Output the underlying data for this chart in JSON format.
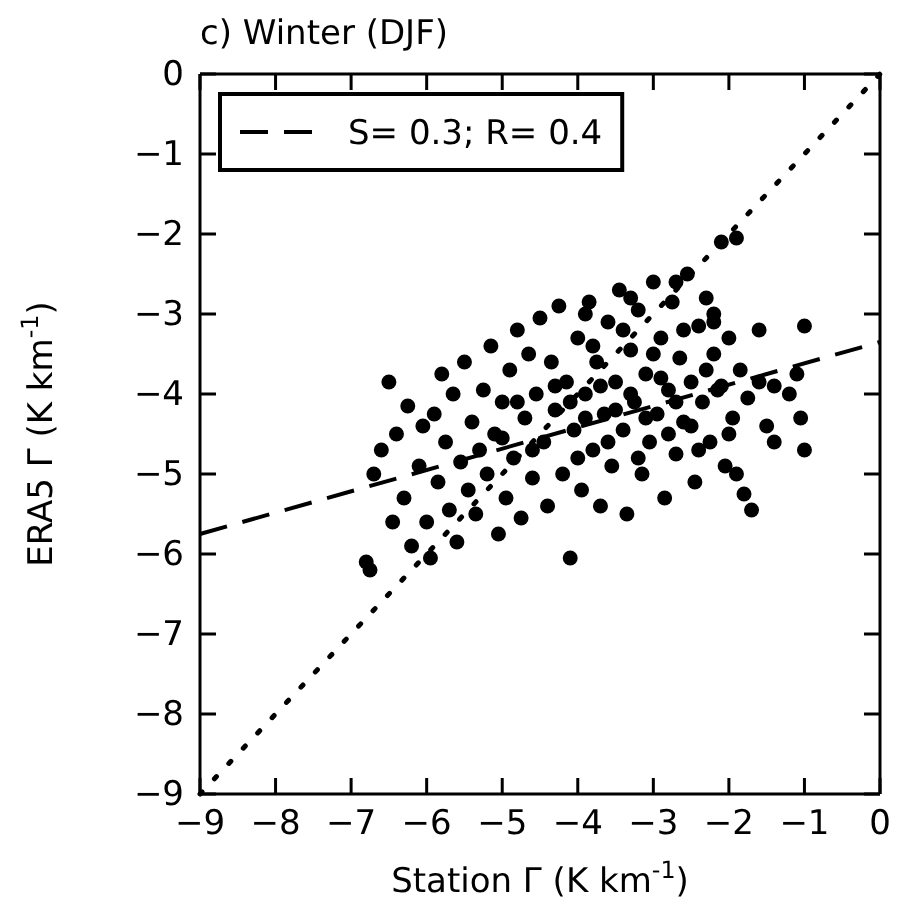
{
  "chart_data": {
    "type": "scatter",
    "title": "c) Winter (DJF)",
    "xlabel": "Station Γ (K km$^{-1}$)",
    "ylabel": "ERA5 Γ (K km$^{-1}$)",
    "xlim": [
      -9,
      0
    ],
    "ylim": [
      -9,
      0
    ],
    "xticks": [
      {
        "value": -9,
        "label": "−9"
      },
      {
        "value": -8,
        "label": "−8"
      },
      {
        "value": -7,
        "label": "−7"
      },
      {
        "value": -6,
        "label": "−6"
      },
      {
        "value": -5,
        "label": "−5"
      },
      {
        "value": -4,
        "label": "−4"
      },
      {
        "value": -3,
        "label": "−3"
      },
      {
        "value": -2,
        "label": "−2"
      },
      {
        "value": -1,
        "label": "−1"
      },
      0
    ],
    "yticks": [
      {
        "value": -9,
        "label": "−9"
      },
      {
        "value": -8,
        "label": "−8"
      },
      {
        "value": -7,
        "label": "−7"
      },
      {
        "value": -6,
        "label": "−6"
      },
      {
        "value": -5,
        "label": "−5"
      },
      {
        "value": -4,
        "label": "−4"
      },
      {
        "value": -3,
        "label": "−3"
      },
      {
        "value": -2,
        "label": "−2"
      },
      {
        "value": -1,
        "label": "−1"
      },
      0
    ],
    "grid": false,
    "legend": "top left",
    "series": [
      {
        "type": "scatter",
        "color": "#000000",
        "marker": "circle",
        "x": [
          -6.8,
          -6.75,
          -6.7,
          -6.6,
          -6.5,
          -6.45,
          -6.4,
          -6.3,
          -6.25,
          -6.2,
          -6.1,
          -6.05,
          -6.0,
          -5.95,
          -5.9,
          -5.85,
          -5.8,
          -5.75,
          -5.7,
          -5.65,
          -5.6,
          -5.55,
          -5.5,
          -5.45,
          -5.4,
          -5.35,
          -5.3,
          -5.25,
          -5.2,
          -5.15,
          -5.1,
          -5.05,
          -5.0,
          -4.95,
          -4.9,
          -4.85,
          -4.8,
          -4.75,
          -4.7,
          -4.65,
          -4.6,
          -4.55,
          -4.5,
          -4.45,
          -4.4,
          -4.35,
          -4.3,
          -4.25,
          -4.2,
          -4.15,
          -4.1,
          -4.05,
          -4.0,
          -3.95,
          -3.9,
          -3.85,
          -3.8,
          -3.75,
          -3.7,
          -3.65,
          -3.6,
          -3.55,
          -3.5,
          -3.45,
          -3.4,
          -3.35,
          -3.3,
          -3.25,
          -3.2,
          -3.15,
          -3.1,
          -3.05,
          -3.0,
          -2.95,
          -2.9,
          -2.85,
          -2.8,
          -2.75,
          -2.7,
          -2.65,
          -2.6,
          -2.55,
          -2.5,
          -2.45,
          -2.4,
          -2.35,
          -2.3,
          -2.25,
          -2.2,
          -2.15,
          -2.1,
          -2.05,
          -2.0,
          -1.95,
          -1.9,
          -1.85,
          -1.8,
          -1.75,
          -1.7,
          -1.6,
          -1.5,
          -1.4,
          -1.2,
          -1.1,
          -1.05,
          -1.0,
          -1.0,
          -4.3,
          -4.1,
          -3.9,
          -3.7,
          -3.5,
          -3.3,
          -3.1,
          -2.9,
          -2.7,
          -2.5,
          -2.3,
          -2.1,
          -3.8,
          -3.4,
          -3.0,
          -2.6,
          -2.2,
          -4.6,
          -4.0,
          -3.6,
          -3.2,
          -2.8,
          -2.4,
          -2.0,
          -5.0,
          -4.8,
          -3.9,
          -3.3,
          -2.7,
          -2.2,
          -1.6,
          -1.4,
          -1.9
        ],
        "values": [
          -6.1,
          -6.2,
          -5.0,
          -4.7,
          -3.85,
          -5.6,
          -4.5,
          -5.3,
          -4.15,
          -5.9,
          -4.9,
          -4.4,
          -5.6,
          -6.05,
          -4.25,
          -5.1,
          -3.75,
          -4.6,
          -5.45,
          -4.0,
          -5.85,
          -4.85,
          -3.6,
          -5.2,
          -4.35,
          -5.5,
          -4.7,
          -3.95,
          -5.0,
          -3.4,
          -4.5,
          -5.75,
          -4.1,
          -5.3,
          -3.7,
          -4.8,
          -3.2,
          -5.55,
          -4.3,
          -3.5,
          -5.05,
          -4.0,
          -3.05,
          -4.6,
          -5.4,
          -3.6,
          -4.2,
          -2.9,
          -5.0,
          -3.85,
          -6.05,
          -4.45,
          -3.3,
          -5.2,
          -4.0,
          -2.85,
          -4.7,
          -3.6,
          -5.4,
          -4.25,
          -3.1,
          -4.9,
          -3.85,
          -2.7,
          -4.45,
          -5.5,
          -3.45,
          -4.1,
          -2.95,
          -5.0,
          -3.75,
          -4.6,
          -2.6,
          -4.25,
          -3.3,
          -5.3,
          -3.95,
          -2.85,
          -4.75,
          -3.55,
          -4.35,
          -2.5,
          -3.85,
          -5.1,
          -3.15,
          -4.1,
          -2.8,
          -4.6,
          -3.5,
          -3.95,
          -2.1,
          -4.9,
          -3.3,
          -4.3,
          -2.05,
          -3.7,
          -5.25,
          -4.05,
          -5.45,
          -3.85,
          -4.4,
          -3.9,
          -4.0,
          -3.75,
          -4.3,
          -3.15,
          -4.7,
          -3.9,
          -4.1,
          -4.3,
          -3.9,
          -4.2,
          -4.0,
          -4.3,
          -3.8,
          -4.1,
          -4.4,
          -3.7,
          -3.9,
          -3.4,
          -3.2,
          -3.5,
          -3.2,
          -3.1,
          -4.7,
          -4.8,
          -4.6,
          -4.8,
          -4.5,
          -4.7,
          -4.5,
          -4.55,
          -4.1,
          -3.0,
          -2.8,
          -2.6,
          -3.0,
          -3.2,
          -4.6,
          -5.0
        ]
      },
      {
        "type": "line",
        "name": "S= 0.3; R= 0.4",
        "color": "#000000",
        "line_style": "dashed",
        "x": [
          -9,
          0
        ],
        "values": [
          -5.75,
          -3.35
        ]
      },
      {
        "type": "line",
        "color": "#000000",
        "line_style": "dotted",
        "x": [
          -9,
          0
        ],
        "values": [
          -9,
          0
        ]
      }
    ]
  }
}
